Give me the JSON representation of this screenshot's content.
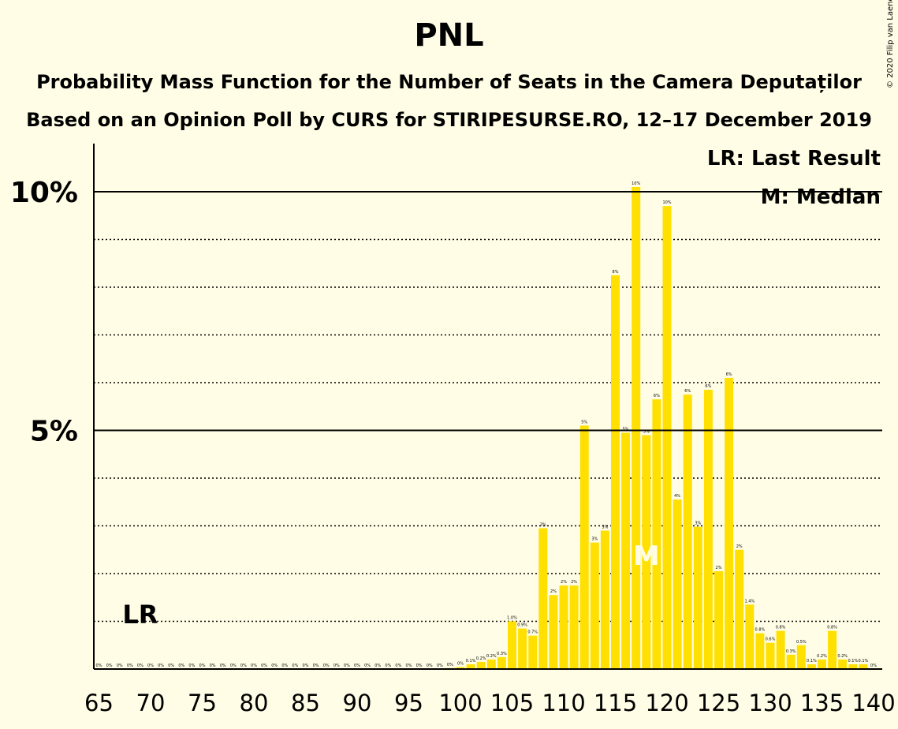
{
  "title": "PNL",
  "subtitle": "Probability Mass Function for the Number of Seats in the Camera Deputaților",
  "subtitle2": "Based on an Opinion Poll by CURS for STIRIPESURSE.RO, 12–17 December 2019",
  "copyright": "© 2020 Filip van Laenen",
  "legend": {
    "lr": "LR: Last Result",
    "median": "M: Median"
  },
  "colors": {
    "bar": "#FFE000",
    "background": "#FFFDE5",
    "text": "#000000",
    "median_label": "#FFFDE5"
  },
  "chart_data": {
    "type": "bar",
    "x": [
      65,
      66,
      67,
      68,
      69,
      70,
      71,
      72,
      73,
      74,
      75,
      76,
      77,
      78,
      79,
      80,
      81,
      82,
      83,
      84,
      85,
      86,
      87,
      88,
      89,
      90,
      91,
      92,
      93,
      94,
      95,
      96,
      97,
      98,
      99,
      100,
      101,
      102,
      103,
      104,
      105,
      106,
      107,
      108,
      109,
      110,
      111,
      112,
      113,
      114,
      115,
      116,
      117,
      118,
      119,
      120,
      121,
      122,
      123,
      124,
      125,
      126,
      127,
      128,
      129,
      130,
      131,
      132,
      133,
      134,
      135,
      136,
      137,
      138,
      139,
      140
    ],
    "values": [
      0,
      0,
      0,
      0,
      0,
      0,
      0,
      0,
      0,
      0,
      0,
      0,
      0,
      0,
      0,
      0,
      0,
      0,
      0,
      0,
      0,
      0,
      0,
      0,
      0,
      0,
      0,
      0,
      0,
      0,
      0,
      0,
      0,
      0,
      0.02,
      0.04,
      0.1,
      0.15,
      0.2,
      0.25,
      1.0,
      0.85,
      0.7,
      2.95,
      1.55,
      1.75,
      1.75,
      5.1,
      2.65,
      2.9,
      8.25,
      4.95,
      10.1,
      4.9,
      5.65,
      9.7,
      3.55,
      5.75,
      2.98,
      5.85,
      2.05,
      6.1,
      2.5,
      1.35,
      0.75,
      0.55,
      0.8,
      0.3,
      0.5,
      0.1,
      0.2,
      0.8,
      0.2,
      0.1,
      0.1,
      0
    ],
    "labels": [
      "0%",
      "0%",
      "0%",
      "0%",
      "0%",
      "0%",
      "0%",
      "0%",
      "0%",
      "0%",
      "0%",
      "0%",
      "0%",
      "0%",
      "0%",
      "0%",
      "0%",
      "0%",
      "0%",
      "0%",
      "0%",
      "0%",
      "0%",
      "0%",
      "0%",
      "0%",
      "0%",
      "0%",
      "0%",
      "0%",
      "0%",
      "0%",
      "0%",
      "0%",
      "0%",
      "0%",
      "0.1%",
      "0.2%",
      "0.2%",
      "0.3%",
      "1.0%",
      "0.9%",
      "0.7%",
      "3%",
      "2%",
      "2%",
      "2%",
      "5%",
      "3%",
      "3%",
      "8%",
      "5%",
      "10%",
      "5%",
      "6%",
      "10%",
      "4%",
      "6%",
      "3%",
      "6%",
      "2%",
      "6%",
      "2%",
      "1.4%",
      "0.8%",
      "0.6%",
      "0.8%",
      "0.3%",
      "0.5%",
      "0.1%",
      "0.2%",
      "0.8%",
      "0.2%",
      "0.1%",
      "0.1%",
      "0%"
    ],
    "x_ticks": [
      65,
      70,
      75,
      80,
      85,
      90,
      95,
      100,
      105,
      110,
      115,
      120,
      125,
      130,
      135,
      140
    ],
    "y_ticks": [
      {
        "value": 5,
        "label": "5%"
      },
      {
        "value": 10,
        "label": "10%"
      }
    ],
    "ylim": [
      0,
      11
    ],
    "last_result": 69,
    "last_result_label": "LR",
    "median": 118,
    "median_label": "M"
  }
}
